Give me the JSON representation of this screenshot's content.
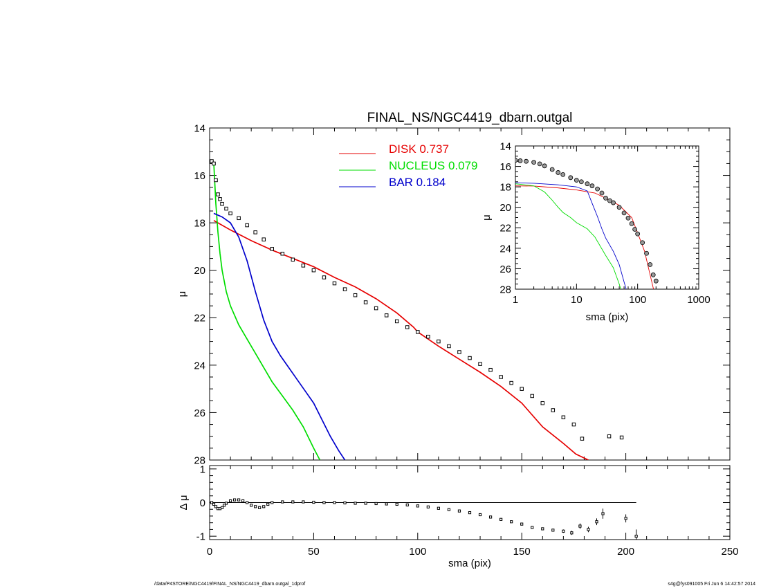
{
  "footer": {
    "path": "/data/P4STORE/NGC4419/FINAL_NS/NGC4419_dbarn.outgal_1dprof",
    "stamp": "s4g@fys091005  Fri Jun  6 14:42:57 2014"
  },
  "chart_data": [
    {
      "type": "line",
      "panel": "main",
      "title": "FINAL_NS/NGC4419_dbarn.outgal",
      "xlabel": "",
      "ylabel": "μ",
      "xlim": [
        0,
        250
      ],
      "ylim": [
        28,
        14
      ],
      "inverted_y": true,
      "xticks": [
        "0",
        "50",
        "100",
        "150",
        "200",
        "250"
      ],
      "yticks": [
        "14",
        "16",
        "18",
        "20",
        "22",
        "24",
        "26",
        "28"
      ],
      "ytick_values": [
        14,
        16,
        18,
        20,
        22,
        24,
        26,
        28
      ],
      "legend_placement": "top-center",
      "legend": [
        {
          "label": "DISK",
          "fraction": "0.737",
          "color": "#e60000"
        },
        {
          "label": "NUCLEUS",
          "fraction": "0.079",
          "color": "#00dd00"
        },
        {
          "label": "BAR",
          "fraction": "0.184",
          "color": "#0000cc"
        }
      ],
      "series": [
        {
          "name": "DISK",
          "color": "#e60000",
          "x": [
            2,
            10,
            20,
            30,
            40,
            50,
            60,
            70,
            80,
            90,
            98,
            100,
            110,
            120,
            130,
            140,
            150,
            160,
            170,
            176,
            182
          ],
          "y": [
            17.9,
            18.3,
            18.75,
            19.15,
            19.5,
            19.85,
            20.3,
            20.7,
            21.2,
            21.8,
            22.4,
            22.6,
            23.2,
            23.75,
            24.3,
            24.9,
            25.6,
            26.6,
            27.3,
            27.75,
            28.0
          ]
        },
        {
          "name": "NUCLEUS",
          "color": "#00dd00",
          "x": [
            2,
            3,
            4,
            5,
            6,
            8,
            10,
            14,
            18,
            22,
            26,
            30,
            35,
            40,
            45,
            50,
            53
          ],
          "y": [
            15.5,
            17.2,
            18.4,
            19.3,
            20.0,
            20.9,
            21.5,
            22.3,
            22.9,
            23.5,
            24.1,
            24.7,
            25.3,
            25.9,
            26.6,
            27.5,
            28.0
          ]
        },
        {
          "name": "BAR",
          "color": "#0000cc",
          "x": [
            2,
            6,
            10,
            14,
            18,
            22,
            26,
            30,
            34,
            38,
            42,
            46,
            50,
            54,
            58,
            62,
            65
          ],
          "y": [
            17.6,
            17.75,
            18.0,
            18.6,
            19.6,
            20.9,
            22.1,
            23.0,
            23.6,
            24.1,
            24.6,
            25.1,
            25.6,
            26.3,
            27.0,
            27.6,
            28.0
          ]
        },
        {
          "name": "",
          "marker": "square",
          "color": "#000000",
          "x": [
            1,
            2,
            3,
            4,
            5,
            6,
            8,
            10,
            14,
            18,
            22,
            26,
            30,
            35,
            40,
            45,
            50,
            55,
            60,
            65,
            70,
            75,
            80,
            85,
            90,
            95,
            100,
            105,
            110,
            115,
            120,
            125,
            130,
            135,
            140,
            145,
            150,
            155,
            160,
            165,
            170,
            175,
            179,
            192,
            198,
            205
          ],
          "y": [
            15.4,
            15.5,
            16.2,
            16.8,
            17.0,
            17.2,
            17.4,
            17.6,
            17.8,
            18.1,
            18.4,
            18.7,
            19.1,
            19.3,
            19.55,
            19.8,
            20.0,
            20.3,
            20.55,
            20.8,
            21.05,
            21.35,
            21.6,
            21.9,
            22.15,
            22.4,
            22.6,
            22.8,
            23.0,
            23.2,
            23.45,
            23.7,
            23.95,
            24.2,
            24.5,
            24.75,
            25.0,
            25.3,
            25.6,
            25.9,
            26.2,
            26.5,
            27.1,
            27.0,
            27.05,
            28.1
          ]
        }
      ]
    },
    {
      "type": "scatter",
      "panel": "residual",
      "xlabel": "sma (pix)",
      "ylabel": "Δ μ",
      "xlim": [
        0,
        250
      ],
      "ylim": [
        -1.1,
        1.1
      ],
      "xticks": [
        "0",
        "50",
        "100",
        "150",
        "200",
        "250"
      ],
      "yticks": [
        "1",
        "0",
        "-1"
      ],
      "ytick_values": [
        1,
        0,
        -1
      ],
      "reference_line": {
        "y": 0,
        "x_range": [
          0,
          205
        ]
      },
      "series": [
        {
          "name": "",
          "marker": "square",
          "color": "#000000",
          "x": [
            1,
            2,
            3,
            4,
            5,
            6,
            7,
            8,
            10,
            12,
            14,
            16,
            18,
            20,
            22,
            24,
            26,
            28,
            30,
            35,
            40,
            45,
            50,
            55,
            60,
            65,
            70,
            75,
            80,
            85,
            90,
            95,
            100,
            105,
            110,
            115,
            120,
            125,
            130,
            135,
            140,
            145,
            150,
            155,
            160,
            165,
            170,
            174,
            178,
            182,
            186,
            189,
            200,
            205
          ],
          "y": [
            0.0,
            -0.05,
            -0.12,
            -0.18,
            -0.18,
            -0.15,
            -0.08,
            -0.02,
            0.05,
            0.08,
            0.08,
            0.05,
            0.0,
            -0.08,
            -0.12,
            -0.15,
            -0.12,
            -0.05,
            0.0,
            0.02,
            0.02,
            0.02,
            0.01,
            0.0,
            0.0,
            -0.01,
            -0.02,
            -0.02,
            -0.03,
            -0.04,
            -0.05,
            -0.07,
            -0.1,
            -0.13,
            -0.17,
            -0.21,
            -0.25,
            -0.3,
            -0.36,
            -0.43,
            -0.5,
            -0.57,
            -0.64,
            -0.74,
            -0.78,
            -0.82,
            -0.85,
            -0.9,
            -0.7,
            -0.8,
            -0.57,
            -0.33,
            -0.47,
            -1.0
          ],
          "y_error": [
            0.01,
            0.01,
            0.01,
            0.01,
            0.01,
            0.01,
            0.01,
            0.01,
            0.01,
            0.01,
            0.01,
            0.01,
            0.01,
            0.01,
            0.01,
            0.01,
            0.01,
            0.01,
            0.01,
            0.01,
            0.01,
            0.01,
            0.01,
            0.01,
            0.01,
            0.01,
            0.01,
            0.01,
            0.01,
            0.01,
            0.01,
            0.01,
            0.01,
            0.01,
            0.01,
            0.01,
            0.01,
            0.01,
            0.01,
            0.01,
            0.01,
            0.01,
            0.02,
            0.02,
            0.03,
            0.03,
            0.05,
            0.06,
            0.08,
            0.08,
            0.1,
            0.15,
            0.12,
            0.2
          ]
        }
      ]
    },
    {
      "type": "line",
      "panel": "inset",
      "x_scale": "log",
      "xlabel": "sma (pix)",
      "ylabel": "μ",
      "xlim": [
        1,
        1000
      ],
      "ylim": [
        28,
        14
      ],
      "inverted_y": true,
      "xticks": [
        "1",
        "10",
        "100",
        "1000"
      ],
      "xtick_values": [
        1,
        10,
        100,
        1000
      ],
      "yticks": [
        "14",
        "16",
        "18",
        "20",
        "22",
        "24",
        "26",
        "28"
      ],
      "ytick_values": [
        14,
        16,
        18,
        20,
        22,
        24,
        26,
        28
      ],
      "series": [
        {
          "name": "DISK",
          "color": "#e60000",
          "x": [
            1,
            2,
            5,
            10,
            20,
            30,
            50,
            80,
            100,
            130,
            160,
            182
          ],
          "y": [
            17.9,
            17.92,
            18.1,
            18.3,
            18.6,
            19.1,
            19.8,
            21.0,
            22.5,
            24.3,
            26.6,
            28.0
          ]
        },
        {
          "name": "NUCLEUS",
          "color": "#00dd00",
          "x": [
            1,
            2,
            3,
            4,
            5,
            6,
            8,
            10,
            15,
            20,
            30,
            40,
            50,
            53
          ],
          "y": [
            17.7,
            17.9,
            18.5,
            19.3,
            20.0,
            20.5,
            21.0,
            21.5,
            22.1,
            22.9,
            24.7,
            25.9,
            27.5,
            28.0
          ]
        },
        {
          "name": "BAR",
          "color": "#0000cc",
          "x": [
            1,
            2,
            5,
            10,
            15,
            18,
            22,
            26,
            30,
            40,
            50,
            60,
            65
          ],
          "y": [
            17.6,
            17.65,
            17.8,
            18.0,
            18.4,
            19.6,
            20.9,
            22.1,
            23.0,
            24.3,
            25.6,
            27.3,
            28.0
          ]
        },
        {
          "name": "",
          "marker": "circle",
          "color": "#000000",
          "x": [
            1,
            1.2,
            1.5,
            2,
            2.5,
            3,
            4,
            5,
            6,
            8,
            10,
            12,
            15,
            18,
            22,
            26,
            30,
            35,
            40,
            50,
            60,
            70,
            80,
            90,
            100,
            120,
            140,
            160,
            180,
            200
          ],
          "y": [
            15.4,
            15.45,
            15.5,
            15.6,
            15.75,
            15.95,
            16.3,
            16.6,
            16.8,
            17.1,
            17.35,
            17.5,
            17.7,
            17.9,
            18.2,
            18.6,
            19.1,
            19.35,
            19.55,
            20.0,
            20.55,
            21.05,
            21.6,
            22.15,
            22.6,
            23.45,
            24.5,
            25.6,
            26.6,
            27.2
          ]
        }
      ]
    }
  ]
}
